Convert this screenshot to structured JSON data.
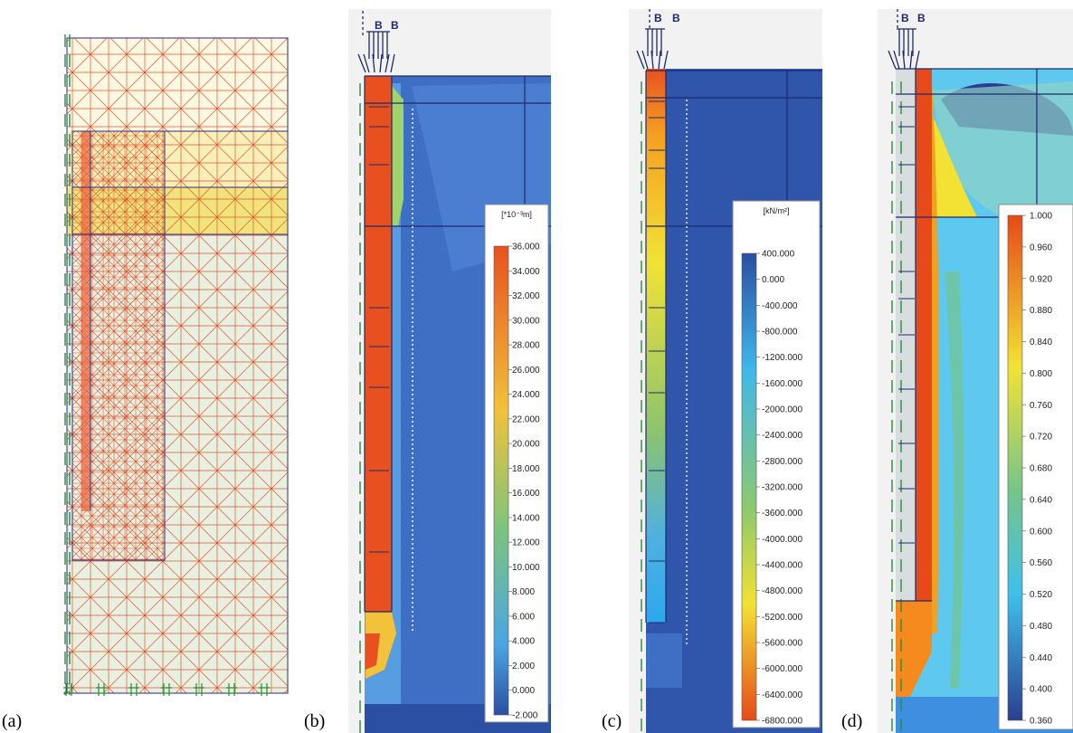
{
  "panels": [
    {
      "id": "a",
      "label": "(a)",
      "kind": "mesh"
    },
    {
      "id": "b",
      "label": "(b)",
      "kind": "contour",
      "top_labels": [
        "B",
        "B"
      ],
      "legend": {
        "unit": "[*10⁻³m]",
        "ticks": [
          "36.000",
          "34.000",
          "32.000",
          "30.000",
          "28.000",
          "26.000",
          "24.000",
          "22.000",
          "20.000",
          "18.000",
          "16.000",
          "14.000",
          "12.000",
          "10.000",
          "8.000",
          "6.000",
          "4.000",
          "2.000",
          "0.000",
          "-2.000"
        ]
      }
    },
    {
      "id": "c",
      "label": "(c)",
      "kind": "contour",
      "top_labels": [
        "B",
        "B"
      ],
      "legend": {
        "unit": "[kN/m²]",
        "ticks": [
          "400.000",
          "0.000",
          "-400.000",
          "-800.000",
          "-1200.000",
          "-1600.000",
          "-2000.000",
          "-2400.000",
          "-2800.000",
          "-3200.000",
          "-3600.000",
          "-4000.000",
          "-4400.000",
          "-4800.000",
          "-5200.000",
          "-5600.000",
          "-6000.000",
          "-6400.000",
          "-6800.000"
        ]
      }
    },
    {
      "id": "d",
      "label": "(d)",
      "kind": "contour",
      "top_labels": [
        "B",
        "B"
      ],
      "legend": {
        "unit": "",
        "ticks": [
          "1.000",
          "0.960",
          "0.920",
          "0.880",
          "0.840",
          "0.800",
          "0.760",
          "0.720",
          "0.680",
          "0.640",
          "0.600",
          "0.560",
          "0.520",
          "0.480",
          "0.440",
          "0.400",
          "0.360"
        ]
      }
    }
  ],
  "colors": {
    "deep_blue": "#2b4fa2",
    "mid_blue": "#3f6fc4",
    "light_blue": "#5fa9e8",
    "cyan": "#3fc0ec",
    "red": "#e64a19",
    "orange": "#f58a1f",
    "yellow": "#f2e234",
    "mesh_line": "#e0552c",
    "mesh_bg_top": "#fdf8e2",
    "mesh_bg_mid": "#f1e37c",
    "mesh_bg_bot": "#e8f0e2"
  }
}
